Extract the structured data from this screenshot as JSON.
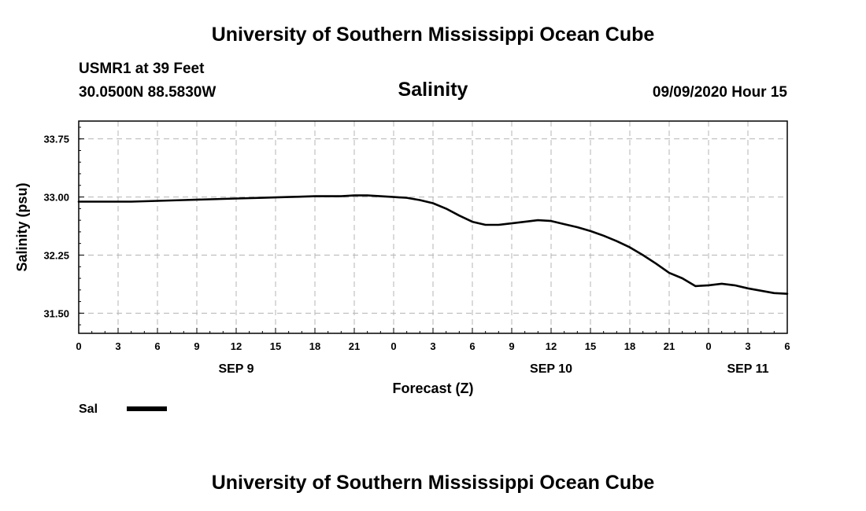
{
  "header": {
    "title": "University of Southern Mississippi Ocean Cube",
    "station": "USMR1 at 39 Feet",
    "coords": "30.0500N 88.5830W",
    "subtitle": "Salinity",
    "datetime": "09/09/2020 Hour 15"
  },
  "footer": {
    "title": "University of Southern Mississippi Ocean Cube"
  },
  "chart_data": {
    "type": "line",
    "title": "Salinity",
    "xlabel": "Forecast (Z)",
    "ylabel": "Salinity (psu)",
    "x_unit": "hours from 00Z SEP 9",
    "xlim": [
      0,
      54
    ],
    "ylim": [
      31.24,
      33.98
    ],
    "x_ticks": [
      0,
      3,
      6,
      9,
      12,
      15,
      18,
      21,
      24,
      27,
      30,
      33,
      36,
      39,
      42,
      45,
      48,
      51,
      54
    ],
    "x_tick_labels": [
      "0",
      "3",
      "6",
      "9",
      "12",
      "15",
      "18",
      "21",
      "0",
      "3",
      "6",
      "9",
      "12",
      "15",
      "18",
      "21",
      "0",
      "3",
      "6"
    ],
    "date_labels": [
      {
        "x": 12,
        "label": "SEP 9"
      },
      {
        "x": 36,
        "label": "SEP 10"
      },
      {
        "x": 51,
        "label": "SEP 11"
      }
    ],
    "y_ticks": [
      31.5,
      32.25,
      33.0,
      33.75
    ],
    "y_tick_labels": [
      "31.50",
      "32.25",
      "33.00",
      "33.75"
    ],
    "grid": true,
    "legend_position": "bottom-left",
    "series": [
      {
        "name": "Sal",
        "color": "#000000",
        "x": [
          0,
          2,
          4,
          6,
          8,
          10,
          12,
          14,
          16,
          18,
          20,
          21,
          22,
          23,
          24,
          25,
          26,
          27,
          28,
          29,
          30,
          31,
          32,
          33,
          34,
          35,
          36,
          37,
          38,
          39,
          40,
          41,
          42,
          43,
          44,
          45,
          46,
          47,
          48,
          49,
          50,
          51,
          52,
          53,
          54
        ],
        "values": [
          32.94,
          32.94,
          32.94,
          32.95,
          32.96,
          32.97,
          32.98,
          32.99,
          33.0,
          33.01,
          33.01,
          33.02,
          33.02,
          33.01,
          33.0,
          32.99,
          32.96,
          32.92,
          32.85,
          32.76,
          32.68,
          32.64,
          32.64,
          32.66,
          32.68,
          32.7,
          32.69,
          32.65,
          32.61,
          32.56,
          32.5,
          32.43,
          32.35,
          32.25,
          32.14,
          32.02,
          31.95,
          31.85,
          31.86,
          31.88,
          31.86,
          31.82,
          31.79,
          31.76,
          31.75
        ]
      }
    ]
  }
}
